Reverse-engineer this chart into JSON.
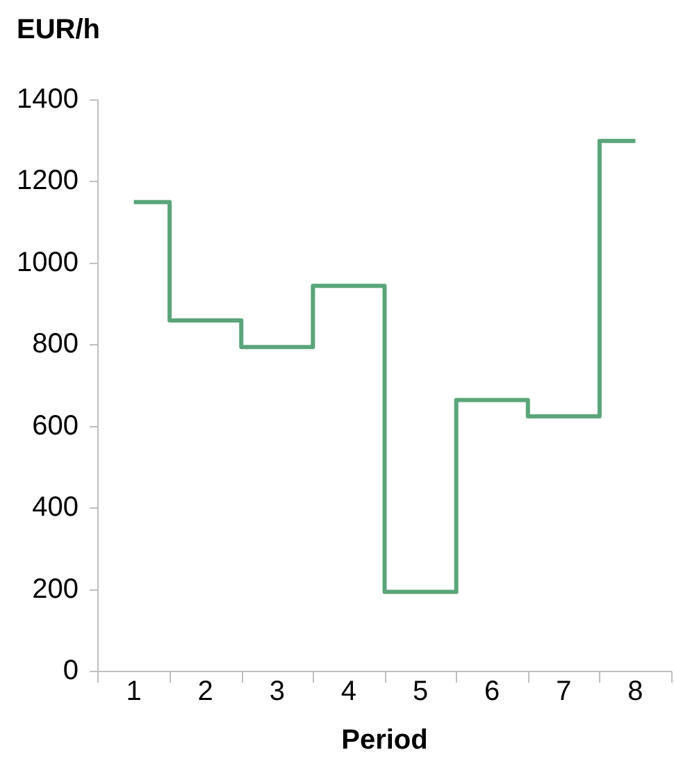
{
  "chart_data": {
    "type": "step",
    "ylabel": "EUR/h",
    "xlabel": "Period",
    "categories": [
      "1",
      "2",
      "3",
      "4",
      "5",
      "6",
      "7",
      "8"
    ],
    "values": [
      1150,
      860,
      795,
      945,
      195,
      665,
      625,
      1300
    ],
    "color": "#5aa57a",
    "ylim": [
      0,
      1400
    ],
    "yticks": [
      0,
      200,
      400,
      600,
      800,
      1000,
      1200,
      1400
    ],
    "grid": false,
    "legend": false,
    "marker": "none",
    "line_style": "solid"
  }
}
